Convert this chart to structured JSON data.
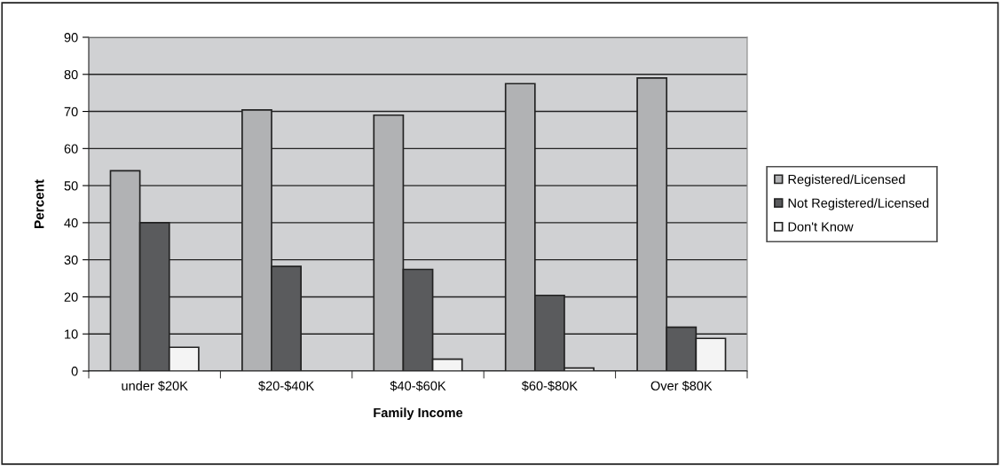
{
  "chart_data": {
    "type": "bar",
    "xlabel": "Family Income",
    "ylabel": "Percent",
    "categories": [
      "under $20K",
      "$20-$40K",
      "$40-$60K",
      "$60-$80K",
      "Over $80K"
    ],
    "series": [
      {
        "name": "Registered/Licensed",
        "color": "#b1b2b4",
        "values": [
          54.0,
          70.4,
          69.0,
          77.5,
          79.0
        ]
      },
      {
        "name": "Not Registered/Licensed",
        "color": "#5a5b5d",
        "values": [
          40.0,
          28.2,
          27.4,
          20.4,
          11.8
        ]
      },
      {
        "name": "Don't Know",
        "color": "#f4f4f4",
        "values": [
          6.4,
          null,
          3.2,
          0.8,
          8.8
        ]
      }
    ],
    "ylim": [
      0,
      90
    ],
    "yticks": [
      0,
      10,
      20,
      30,
      40,
      50,
      60,
      70,
      80,
      90
    ],
    "grid": "y",
    "legend": "right"
  }
}
